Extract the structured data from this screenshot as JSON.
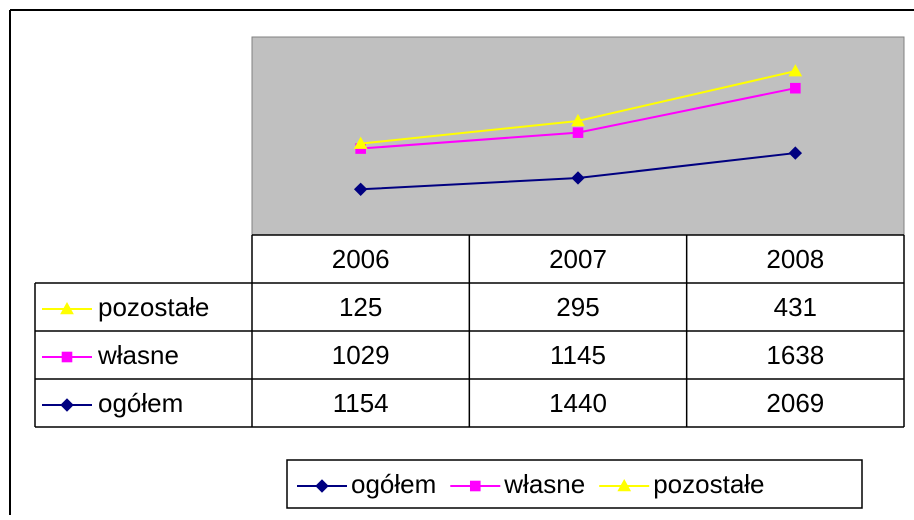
{
  "chart_data": {
    "type": "line",
    "stacked": true,
    "categories": [
      "2006",
      "2007",
      "2008"
    ],
    "series": [
      {
        "name": "ogółem",
        "color": "#000080",
        "marker": "diamond",
        "values": [
          1154,
          1440,
          2069
        ]
      },
      {
        "name": "własne",
        "color": "#ff00ff",
        "marker": "square",
        "values": [
          1029,
          1145,
          1638
        ]
      },
      {
        "name": "pozostałe",
        "color": "#ffff00",
        "marker": "triangle",
        "values": [
          125,
          295,
          431
        ]
      }
    ],
    "ylim": [
      0,
      5000
    ],
    "plot_background": "#c0c0c0",
    "data_table": true,
    "legend": "bottom"
  }
}
